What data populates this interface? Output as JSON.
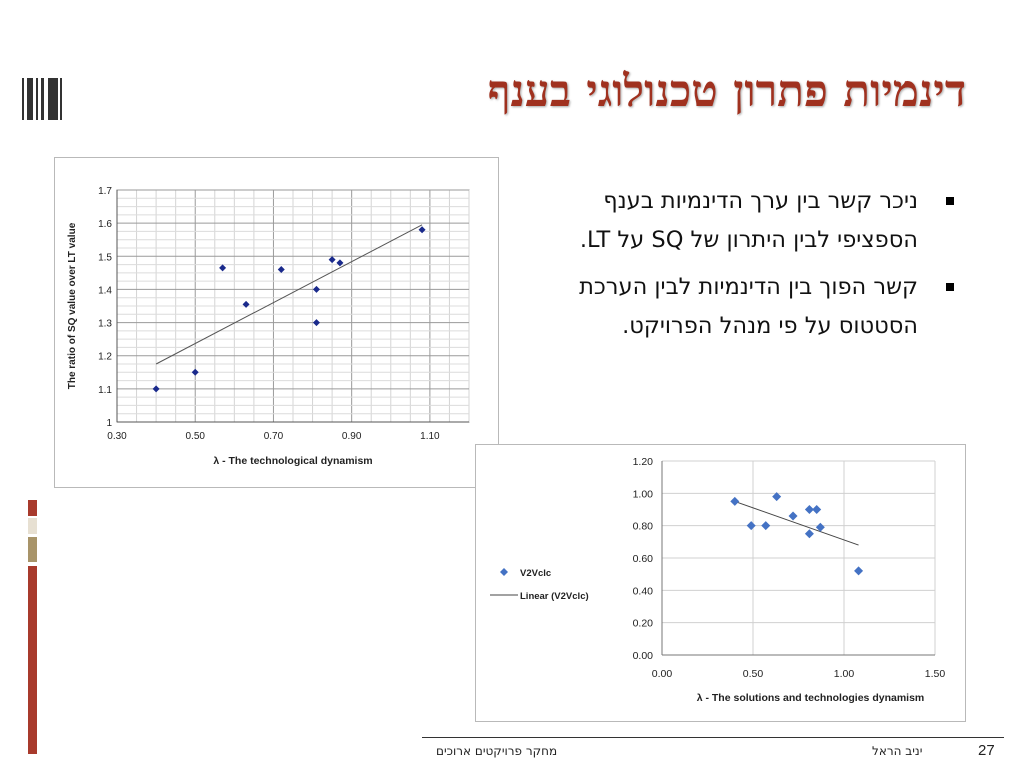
{
  "slide": {
    "title": "דינמיות פתרון טכנולוגי בענף",
    "bullets": [
      "ניכר קשר בין ערך הדינמיות בענף הספציפי לבין היתרון של SQ על LT.",
      "קשר הפוך בין הדינמיות לבין הערכת הסטטוס על פי מנהל הפרויקט."
    ]
  },
  "footer": {
    "course": "מחקר פרויקטים ארוכים",
    "author": "יניב הראל",
    "page_number": "27"
  },
  "colors": {
    "title": "#a0311f",
    "accent_red": "#a83a2c",
    "accent_tan": "#a89469",
    "series1": "#1a2a8c",
    "series2": "#4472c4"
  },
  "chart_data": [
    {
      "type": "scatter",
      "title": "",
      "xlabel": "λ - The technological dynamism",
      "ylabel": "The ratio of SQ value over LT value",
      "xlim": [
        0.3,
        1.2
      ],
      "ylim": [
        1.0,
        1.7
      ],
      "x_ticks": [
        "0.30",
        "0.50",
        "0.70",
        "0.90",
        "1.10"
      ],
      "y_ticks": [
        "1",
        "1.1",
        "1.2",
        "1.3",
        "1.4",
        "1.5",
        "1.6",
        "1.7"
      ],
      "grid": true,
      "points": [
        [
          0.4,
          1.1
        ],
        [
          0.5,
          1.15
        ],
        [
          0.57,
          1.465
        ],
        [
          0.63,
          1.355
        ],
        [
          0.72,
          1.46
        ],
        [
          0.81,
          1.4
        ],
        [
          0.81,
          1.3
        ],
        [
          0.85,
          1.49
        ],
        [
          0.87,
          1.48
        ],
        [
          1.08,
          1.58
        ]
      ],
      "trendline": [
        [
          0.4,
          1.175
        ],
        [
          1.08,
          1.595
        ]
      ]
    },
    {
      "type": "scatter",
      "title": "",
      "xlabel": "λ - The solutions and technologies dynamism",
      "ylabel": "",
      "xlim": [
        0,
        1.5
      ],
      "ylim": [
        0,
        1.2
      ],
      "x_ticks": [
        "0.00",
        "0.50",
        "1.00",
        "1.50"
      ],
      "y_ticks": [
        "0.00",
        "0.20",
        "0.40",
        "0.60",
        "0.80",
        "1.00",
        "1.20"
      ],
      "grid": true,
      "legend": {
        "placement": "left",
        "items": [
          "V2Vclc",
          "Linear (V2Vclc)"
        ]
      },
      "series_name": "V2Vclc",
      "points": [
        [
          0.4,
          0.95
        ],
        [
          0.49,
          0.8
        ],
        [
          0.57,
          0.8
        ],
        [
          0.63,
          0.98
        ],
        [
          0.72,
          0.86
        ],
        [
          0.81,
          0.9
        ],
        [
          0.81,
          0.75
        ],
        [
          0.85,
          0.9
        ],
        [
          0.87,
          0.79
        ],
        [
          1.08,
          0.52
        ]
      ],
      "trendline": [
        [
          0.4,
          0.95
        ],
        [
          1.08,
          0.68
        ]
      ]
    }
  ]
}
